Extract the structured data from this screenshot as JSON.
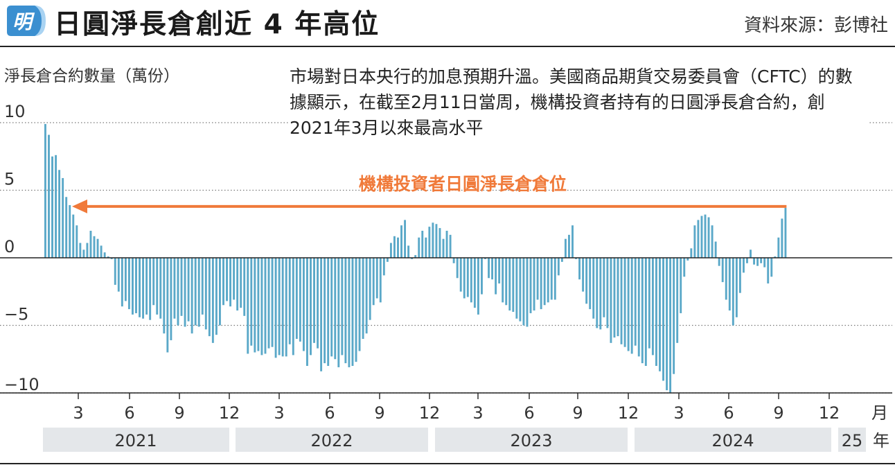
{
  "header": {
    "logo_char": "明",
    "title": "日圓淨長倉創近 4 年高位",
    "source": "資料來源：彭博社"
  },
  "note": {
    "text": "市場對日本央行的加息預期升溫。美國商品期貨交易委員會（CFTC）的數據顯示，在截至2月11日當周，機構投資者持有的日圓淨長倉合約，創2021年3月以來最高水平"
  },
  "colors": {
    "bar": "#5aa8c8",
    "arrow": "#f07a3a",
    "year_band": "#e4e7ea",
    "logo": "#3b8fd0"
  },
  "chart_data": {
    "type": "bar",
    "title": "日圓淨長倉創近 4 年高位",
    "ylabel": "淨長倉合約數量（萬份）",
    "xlabel": "月",
    "ylim": [
      -10.5,
      10
    ],
    "yticks": [
      10,
      5,
      0,
      -5,
      -10
    ],
    "ytick_labels": [
      "10",
      "5",
      "0",
      "−5",
      "−10"
    ],
    "grid": "dotted horizontal at ticks",
    "month_ticks": [
      "3",
      "6",
      "9",
      "12",
      "3",
      "6",
      "9",
      "12",
      "3",
      "6",
      "9",
      "12",
      "3",
      "6",
      "9",
      "12",
      "月"
    ],
    "years": [
      "2021",
      "2022",
      "2023",
      "2024",
      "25",
      "年"
    ],
    "annotation": "機構投資者日圓淨長倉倉位",
    "annotation_value": 3.7,
    "series": [
      {
        "name": "機構投資者日圓淨長倉倉位",
        "values": [
          9.9,
          9.1,
          7.5,
          7.6,
          6.5,
          5.9,
          4.5,
          3.9,
          3.2,
          2.4,
          1.1,
          0.6,
          1.1,
          2.0,
          1.6,
          1.4,
          0.9,
          0.4,
          0.1,
          -0.1,
          -2.0,
          -2.5,
          -3.6,
          -3.2,
          -3.8,
          -4.2,
          -4.1,
          -4.4,
          -4.5,
          -4.2,
          -4.6,
          -3.5,
          -4.2,
          -4.5,
          -5.6,
          -7.0,
          -6.1,
          -4.5,
          -5.0,
          -4.3,
          -5.1,
          -4.7,
          -5.6,
          -5.0,
          -5.1,
          -4.2,
          -5.3,
          -5.8,
          -6.3,
          -5.7,
          -5.0,
          -3.5,
          -3.2,
          -3.6,
          -3.1,
          -3.9,
          -3.7,
          -4.3,
          -7.1,
          -6.5,
          -7.0,
          -6.9,
          -7.2,
          -7.1,
          -6.7,
          -6.6,
          -7.4,
          -7.2,
          -7.3,
          -7.3,
          -6.4,
          -7.2,
          -6.0,
          -6.2,
          -6.9,
          -8.0,
          -7.2,
          -6.3,
          -6.7,
          -8.4,
          -7.8,
          -8.0,
          -7.3,
          -7.5,
          -8.1,
          -7.2,
          -7.8,
          -8.1,
          -8.0,
          -7.7,
          -6.9,
          -6.0,
          -5.6,
          -4.6,
          -3.5,
          -3.0,
          -3.3,
          -1.3,
          -0.3,
          1.1,
          1.6,
          1.5,
          2.4,
          2.8,
          0.9,
          -0.1,
          0.2,
          1.5,
          2.0,
          1.5,
          2.3,
          2.6,
          2.5,
          2.2,
          1.4,
          2.0,
          1.7,
          -0.4,
          -1.5,
          -2.5,
          -3.0,
          -2.9,
          -3.3,
          -3.7,
          -4.2,
          -2.7,
          -0.1,
          -1.5,
          -1.6,
          -2.7,
          -1.9,
          -3.3,
          -3.5,
          -3.9,
          -4.0,
          -4.5,
          -4.7,
          -5.0,
          -5.1,
          -4.1,
          -3.9,
          -3.1,
          -3.8,
          -3.5,
          -3.3,
          -3.1,
          -3.1,
          -1.3,
          -0.3,
          1.4,
          1.7,
          2.4,
          -0.1,
          -1.6,
          -2.5,
          -3.4,
          -3.8,
          -4.5,
          -5.2,
          -5.3,
          -4.4,
          -5.2,
          -6.3,
          -5.9,
          -5.8,
          -6.4,
          -6.6,
          -6.9,
          -7.1,
          -6.5,
          -7.3,
          -7.8,
          -8.0,
          -6.7,
          -7.2,
          -8.0,
          -8.4,
          -9.1,
          -9.8,
          -10.0,
          -8.6,
          -6.3,
          -4.1,
          -1.4,
          -0.2,
          0.7,
          2.4,
          2.8,
          3.1,
          3.2,
          3.0,
          2.4,
          1.2,
          -0.6,
          -1.8,
          -3.1,
          -3.9,
          -5.0,
          -4.4,
          -2.6,
          -1.1,
          -0.4,
          0.6,
          -0.5,
          -0.6,
          -0.4,
          -0.7,
          -1.9,
          -1.4,
          0.1,
          1.5,
          2.9,
          3.7
        ]
      }
    ]
  }
}
